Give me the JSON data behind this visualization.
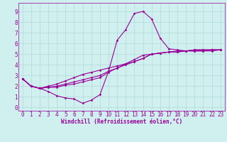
{
  "background_color": "#d0f0f0",
  "grid_color": "#b0d8d8",
  "line_color": "#990099",
  "marker": "D",
  "marker_size": 1.5,
  "line_width": 0.8,
  "xlabel": "Windchill (Refroidissement éolien,°C)",
  "xlabel_fontsize": 5.5,
  "tick_fontsize": 5.5,
  "xlim": [
    -0.5,
    23.5
  ],
  "ylim": [
    -0.3,
    9.8
  ],
  "xticks": [
    0,
    1,
    2,
    3,
    4,
    5,
    6,
    7,
    8,
    9,
    10,
    11,
    12,
    13,
    14,
    15,
    16,
    17,
    18,
    19,
    20,
    21,
    22,
    23
  ],
  "yticks": [
    0,
    1,
    2,
    3,
    4,
    5,
    6,
    7,
    8,
    9
  ],
  "series": [
    [
      2.7,
      2.0,
      1.8,
      1.5,
      1.1,
      0.9,
      0.8,
      0.4,
      0.7,
      1.2,
      3.4,
      6.3,
      7.3,
      8.8,
      9.0,
      8.3,
      6.5,
      5.5,
      5.4,
      5.3,
      5.4,
      5.4,
      5.4,
      5.4
    ],
    [
      2.7,
      2.0,
      1.8,
      1.9,
      1.9,
      2.1,
      2.2,
      2.4,
      2.6,
      2.8,
      3.3,
      3.7,
      4.1,
      4.5,
      4.9,
      5.0,
      5.1,
      5.2,
      5.2,
      5.3,
      5.3,
      5.3,
      5.3,
      5.4
    ],
    [
      2.7,
      2.0,
      1.8,
      1.9,
      2.0,
      2.2,
      2.4,
      2.6,
      2.8,
      3.0,
      3.4,
      3.7,
      4.0,
      4.3,
      4.6,
      5.0,
      5.1,
      5.2,
      5.2,
      5.3,
      5.3,
      5.3,
      5.4,
      5.4
    ],
    [
      2.7,
      2.0,
      1.8,
      2.0,
      2.2,
      2.5,
      2.8,
      3.1,
      3.3,
      3.5,
      3.7,
      3.9,
      4.1,
      4.3,
      4.6,
      5.0,
      5.1,
      5.2,
      5.3,
      5.3,
      5.4,
      5.4,
      5.4,
      5.4
    ]
  ]
}
